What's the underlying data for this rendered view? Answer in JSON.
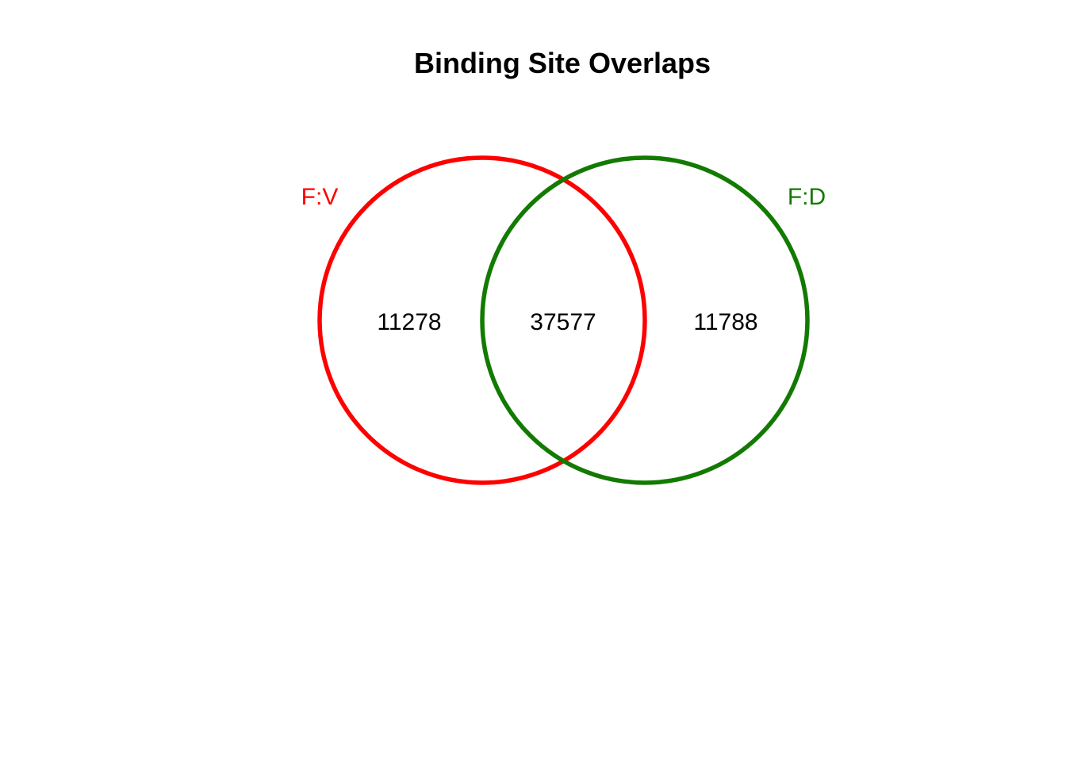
{
  "title": "Binding Site Overlaps",
  "sets": [
    {
      "name": "F:V",
      "color": "#ff0000",
      "only_count": "11278"
    },
    {
      "name": "F:D",
      "color": "#127a00",
      "only_count": "11788"
    }
  ],
  "intersection_count": "37577"
}
